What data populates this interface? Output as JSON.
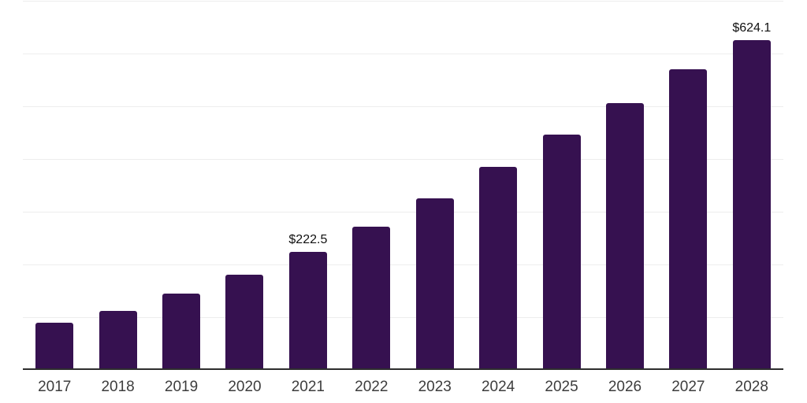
{
  "chart_data": {
    "type": "bar",
    "title": "",
    "xlabel": "",
    "ylabel": "",
    "categories": [
      "2017",
      "2018",
      "2019",
      "2020",
      "2021",
      "2022",
      "2023",
      "2024",
      "2025",
      "2026",
      "2027",
      "2028"
    ],
    "values": [
      87.7,
      110.3,
      143.3,
      178.5,
      222.5,
      270.5,
      323.3,
      383.0,
      444.5,
      504.8,
      568.7,
      624.1
    ],
    "data_labels": [
      {
        "category": "2021",
        "text": "$222.5"
      },
      {
        "category": "2028",
        "text": "$624.1"
      }
    ],
    "ylim": [
      0,
      700
    ],
    "gridline_step": 100,
    "grid": true,
    "legend": "none",
    "colors": {
      "bar": "#361150",
      "gridline": "#ededed",
      "axis_line": "#2e2e2e",
      "tick_label": "#3d3d3d",
      "value_label": "#111111",
      "background": "#ffffff"
    }
  }
}
